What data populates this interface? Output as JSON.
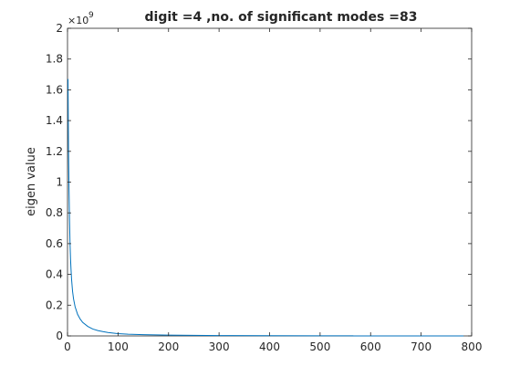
{
  "chart_data": {
    "type": "line",
    "title": "digit =4 ,no. of significant modes =83",
    "xlabel": "",
    "ylabel": "eigen value",
    "y_exponent_label": "×10",
    "y_exponent_power": "9",
    "xlim": [
      0,
      800
    ],
    "ylim": [
      0,
      2
    ],
    "xticks": [
      "0",
      "100",
      "200",
      "300",
      "400",
      "500",
      "600",
      "700",
      "800"
    ],
    "yticks": [
      "0",
      "0.2",
      "0.4",
      "0.6",
      "0.8",
      "1",
      "1.2",
      "1.4",
      "1.6",
      "1.8",
      "2"
    ],
    "grid": false,
    "series_color": "#0072bd",
    "series": [
      {
        "x": [
          1,
          2,
          3,
          4,
          5,
          6,
          7,
          8,
          10,
          12,
          15,
          20,
          25,
          30,
          40,
          50,
          60,
          70,
          80,
          100,
          120,
          150,
          200,
          250,
          300,
          400,
          500,
          565,
          566,
          600,
          700,
          784
        ],
        "values": [
          1.67,
          1.2,
          0.95,
          0.75,
          0.6,
          0.5,
          0.43,
          0.37,
          0.29,
          0.24,
          0.19,
          0.14,
          0.11,
          0.088,
          0.062,
          0.045,
          0.035,
          0.028,
          0.022,
          0.015,
          0.011,
          0.008,
          0.005,
          0.0035,
          0.0025,
          0.0015,
          0.001,
          0.0006,
          0.0,
          0.0,
          0.0,
          0.0
        ]
      }
    ]
  }
}
